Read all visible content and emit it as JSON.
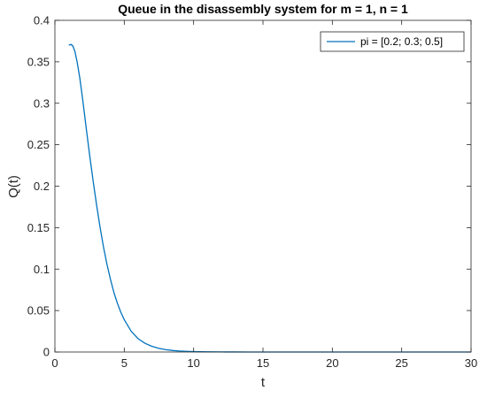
{
  "chart_data": {
    "type": "line",
    "title": "Queue in the disassembly system for m = 1, n = 1",
    "xlabel": "t",
    "ylabel": "Q(t)",
    "xlim": [
      0,
      30
    ],
    "ylim": [
      0,
      0.4
    ],
    "xticks": [
      0,
      5,
      10,
      15,
      20,
      25,
      30
    ],
    "xtick_labels": [
      "0",
      "5",
      "10",
      "15",
      "20",
      "25",
      "30"
    ],
    "yticks": [
      0,
      0.05,
      0.1,
      0.15,
      0.2,
      0.25,
      0.3,
      0.35,
      0.4
    ],
    "ytick_labels": [
      "0",
      "0.05",
      "0.1",
      "0.15",
      "0.2",
      "0.25",
      "0.3",
      "0.35",
      "0.4"
    ],
    "grid": false,
    "legend_position": "top-right",
    "series": [
      {
        "name": "pi = [0.2; 0.3; 0.5]",
        "color": "#0072BD",
        "x": [
          1.0,
          1.15,
          1.3,
          1.45,
          1.6,
          1.8,
          2.0,
          2.25,
          2.5,
          2.75,
          3.0,
          3.25,
          3.5,
          3.75,
          4.0,
          4.25,
          4.5,
          4.75,
          5.0,
          5.5,
          6.0,
          6.5,
          7.0,
          7.5,
          8.0,
          8.5,
          9.0,
          9.5,
          10.0,
          11.0,
          12.0,
          13.0,
          14.0,
          15.0,
          17.5,
          20.0,
          25.0,
          30.0
        ],
        "y": [
          0.37,
          0.371,
          0.369,
          0.362,
          0.35,
          0.33,
          0.305,
          0.271,
          0.238,
          0.207,
          0.178,
          0.151,
          0.127,
          0.106,
          0.088,
          0.072,
          0.059,
          0.048,
          0.039,
          0.025,
          0.016,
          0.0105,
          0.0068,
          0.0044,
          0.0028,
          0.0018,
          0.0012,
          0.0008,
          0.0005,
          0.0002,
          0.0001,
          4e-05,
          2e-05,
          1e-05,
          0.0,
          0.0,
          0.0,
          0.0
        ]
      }
    ]
  }
}
